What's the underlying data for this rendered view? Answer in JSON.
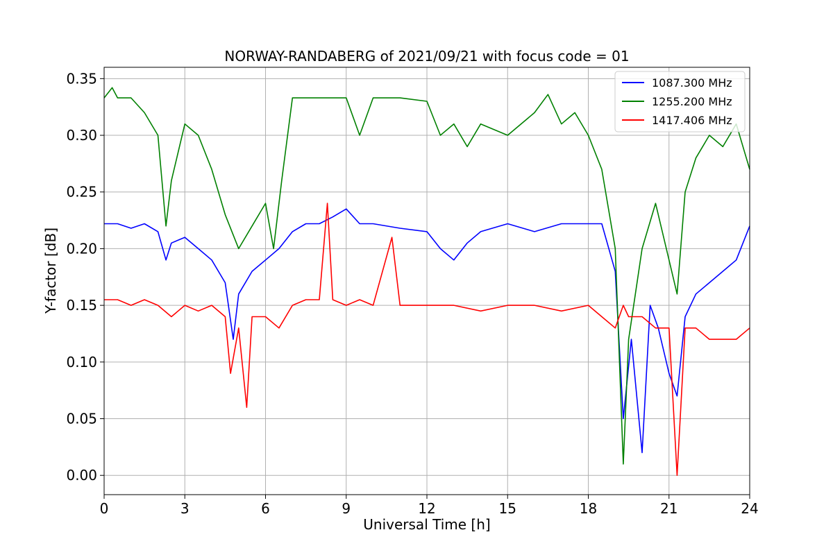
{
  "chart_data": {
    "type": "line",
    "title": "NORWAY-RANDABERG of 2021/09/21 with focus code = 01",
    "xlabel": "Universal Time [h]",
    "ylabel": "Y-factor [dB]",
    "xlim": [
      0,
      24
    ],
    "ylim": [
      -0.017,
      0.36
    ],
    "xticks": [
      0,
      3,
      6,
      9,
      12,
      15,
      18,
      21,
      24
    ],
    "xtick_labels": [
      "0",
      "3",
      "6",
      "9",
      "12",
      "15",
      "18",
      "21",
      "24"
    ],
    "yticks": [
      0.0,
      0.05,
      0.1,
      0.15,
      0.2,
      0.25,
      0.3,
      0.35
    ],
    "ytick_labels": [
      "0.00",
      "0.05",
      "0.10",
      "0.15",
      "0.20",
      "0.25",
      "0.30",
      "0.35"
    ],
    "grid": true,
    "legend_position": "top-right",
    "series": [
      {
        "name": "1087.300 MHz",
        "color": "#0000ff",
        "x": [
          0.0,
          0.5,
          1.0,
          1.5,
          2.0,
          2.3,
          2.5,
          3.0,
          3.5,
          4.0,
          4.5,
          4.8,
          5.0,
          5.5,
          6.0,
          6.5,
          7.0,
          7.5,
          8.0,
          8.5,
          9.0,
          9.5,
          10.0,
          11.0,
          12.0,
          12.5,
          13.0,
          13.5,
          14.0,
          15.0,
          16.0,
          17.0,
          18.0,
          18.5,
          19.0,
          19.3,
          19.6,
          20.0,
          20.3,
          20.6,
          21.0,
          21.3,
          21.6,
          22.0,
          22.5,
          23.0,
          23.5,
          24.0
        ],
        "values": [
          0.222,
          0.222,
          0.218,
          0.222,
          0.215,
          0.19,
          0.205,
          0.21,
          0.2,
          0.19,
          0.17,
          0.12,
          0.16,
          0.18,
          0.19,
          0.2,
          0.215,
          0.222,
          0.222,
          0.228,
          0.235,
          0.222,
          0.222,
          0.218,
          0.215,
          0.2,
          0.19,
          0.205,
          0.215,
          0.222,
          0.215,
          0.222,
          0.222,
          0.222,
          0.18,
          0.05,
          0.12,
          0.02,
          0.15,
          0.13,
          0.09,
          0.07,
          0.14,
          0.16,
          0.17,
          0.18,
          0.19,
          0.22
        ]
      },
      {
        "name": "1255.200 MHz",
        "color": "#008000",
        "x": [
          0.0,
          0.3,
          0.5,
          1.0,
          1.5,
          2.0,
          2.3,
          2.5,
          3.0,
          3.5,
          4.0,
          4.5,
          5.0,
          5.5,
          6.0,
          6.3,
          6.6,
          7.0,
          7.5,
          8.0,
          9.0,
          9.5,
          10.0,
          11.0,
          12.0,
          12.5,
          13.0,
          13.5,
          14.0,
          15.0,
          16.0,
          16.5,
          17.0,
          17.5,
          18.0,
          18.5,
          19.0,
          19.3,
          19.5,
          20.0,
          20.5,
          21.0,
          21.3,
          21.6,
          22.0,
          22.5,
          23.0,
          23.5,
          24.0
        ],
        "values": [
          0.333,
          0.342,
          0.333,
          0.333,
          0.32,
          0.3,
          0.22,
          0.26,
          0.31,
          0.3,
          0.27,
          0.23,
          0.2,
          0.22,
          0.24,
          0.2,
          0.26,
          0.333,
          0.333,
          0.333,
          0.333,
          0.3,
          0.333,
          0.333,
          0.33,
          0.3,
          0.31,
          0.29,
          0.31,
          0.3,
          0.32,
          0.336,
          0.31,
          0.32,
          0.3,
          0.27,
          0.2,
          0.01,
          0.12,
          0.2,
          0.24,
          0.19,
          0.16,
          0.25,
          0.28,
          0.3,
          0.29,
          0.31,
          0.27
        ]
      },
      {
        "name": "1417.406 MHz",
        "color": "#ff0000",
        "x": [
          0.0,
          0.5,
          1.0,
          1.5,
          2.0,
          2.5,
          3.0,
          3.5,
          4.0,
          4.5,
          4.7,
          5.0,
          5.3,
          5.5,
          6.0,
          6.5,
          7.0,
          7.5,
          8.0,
          8.3,
          8.5,
          9.0,
          9.5,
          10.0,
          10.7,
          11.0,
          12.0,
          13.0,
          14.0,
          15.0,
          16.0,
          17.0,
          18.0,
          18.5,
          19.0,
          19.3,
          19.5,
          20.0,
          20.5,
          21.0,
          21.3,
          21.6,
          22.0,
          22.5,
          23.0,
          23.5,
          24.0
        ],
        "values": [
          0.155,
          0.155,
          0.15,
          0.155,
          0.15,
          0.14,
          0.15,
          0.145,
          0.15,
          0.14,
          0.09,
          0.13,
          0.06,
          0.14,
          0.14,
          0.13,
          0.15,
          0.155,
          0.155,
          0.24,
          0.155,
          0.15,
          0.155,
          0.15,
          0.21,
          0.15,
          0.15,
          0.15,
          0.145,
          0.15,
          0.15,
          0.145,
          0.15,
          0.14,
          0.13,
          0.15,
          0.14,
          0.14,
          0.13,
          0.13,
          0.0,
          0.13,
          0.13,
          0.12,
          0.12,
          0.12,
          0.13
        ]
      }
    ]
  }
}
